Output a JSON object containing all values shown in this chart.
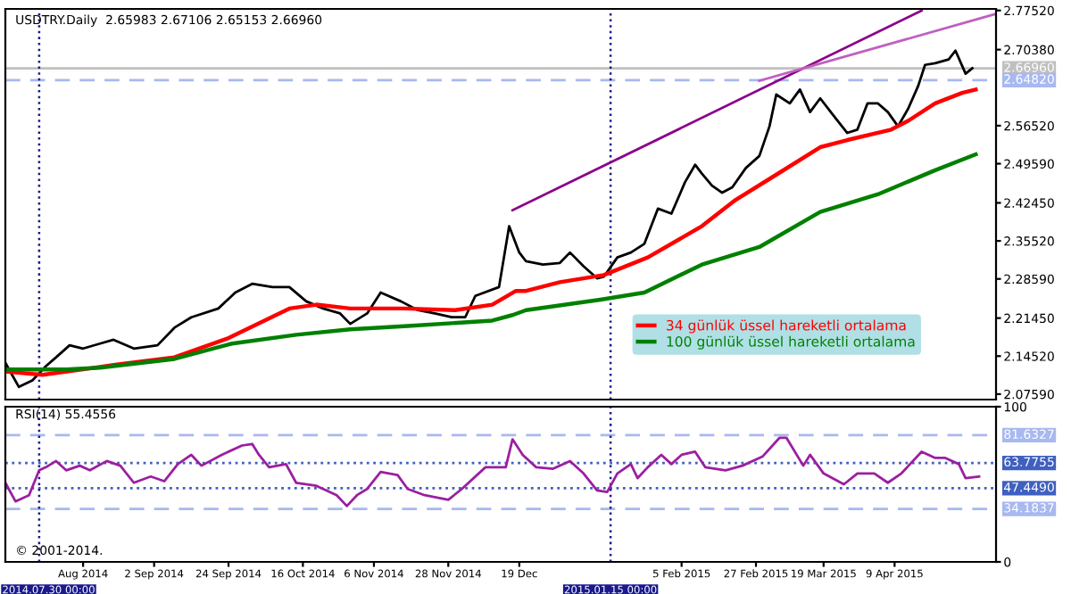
{
  "chart_data": [
    {
      "type": "line",
      "title": "USDTRY.Daily  2.65983 2.67106 2.65153 2.66960",
      "legend": "bottom right",
      "tick_labels": "y",
      "xlim": [
        "2014-07-20",
        "2015-05-09"
      ],
      "ylim": [
        2.066,
        2.778
      ],
      "yticks": [
        {
          "value": 2.7752,
          "label": "2.77520"
        },
        {
          "value": 2.7038,
          "label": "2.70380"
        },
        {
          "value": 2.5652,
          "label": "2.56520"
        },
        {
          "value": 2.4959,
          "label": "2.49590"
        },
        {
          "value": 2.4245,
          "label": "2.42450"
        },
        {
          "value": 2.3552,
          "label": "2.35520"
        },
        {
          "value": 2.2859,
          "label": "2.28590"
        },
        {
          "value": 2.2145,
          "label": "2.21450"
        },
        {
          "value": 2.1452,
          "label": "2.14520"
        },
        {
          "value": 2.0759,
          "label": "2.07590"
        }
      ],
      "ref_lines": [
        {
          "axis": "y",
          "value": 2.6696,
          "label": "2.66960",
          "color": "#c0c0c0",
          "line_style": "solid"
        },
        {
          "axis": "y",
          "value": 2.6482,
          "label": "2.64820",
          "color": "#a8b8f0",
          "line_style": "dashed"
        },
        {
          "axis": "x",
          "value": "2014-07-30",
          "color": "#1a1a8c",
          "line_style": "dotted"
        },
        {
          "axis": "x",
          "value": "2015-01-15",
          "color": "#1a1a8c",
          "line_style": "dotted"
        }
      ],
      "series": [
        {
          "color": "#000000",
          "x": [
            "2014-07-20",
            "2014-07-24",
            "2014-07-28",
            "2014-08-01",
            "2014-08-04",
            "2014-08-08",
            "2014-08-12",
            "2014-08-17",
            "2014-08-21",
            "2014-08-27",
            "2014-09-03",
            "2014-09-08",
            "2014-09-13",
            "2014-09-21",
            "2014-09-26",
            "2014-10-01",
            "2014-10-07",
            "2014-10-12",
            "2014-10-17",
            "2014-10-22",
            "2014-10-27",
            "2014-10-30",
            "2014-11-04",
            "2014-11-08",
            "2014-11-14",
            "2014-11-19",
            "2014-11-24",
            "2014-11-29",
            "2014-12-03",
            "2014-12-06",
            "2014-12-13",
            "2014-12-16",
            "2014-12-19",
            "2014-12-21",
            "2014-12-26",
            "2014-12-31",
            "2015-01-03",
            "2015-01-07",
            "2015-01-11",
            "2015-01-13",
            "2015-01-17",
            "2015-01-21",
            "2015-01-25",
            "2015-01-29",
            "2015-02-02",
            "2015-02-06",
            "2015-02-09",
            "2015-02-11",
            "2015-02-14",
            "2015-02-17",
            "2015-02-20",
            "2015-02-24",
            "2015-02-28",
            "2015-03-03",
            "2015-03-05",
            "2015-03-09",
            "2015-03-12",
            "2015-03-15",
            "2015-03-18",
            "2015-03-22",
            "2015-03-26",
            "2015-03-29",
            "2015-04-01",
            "2015-04-04",
            "2015-04-07",
            "2015-04-10",
            "2015-04-13",
            "2015-04-16",
            "2015-04-18",
            "2015-04-21",
            "2015-04-25",
            "2015-04-27",
            "2015-04-30",
            "2015-05-02"
          ],
          "values": [
            2.133,
            2.089,
            2.101,
            2.127,
            2.143,
            2.165,
            2.159,
            2.168,
            2.175,
            2.159,
            2.165,
            2.197,
            2.216,
            2.232,
            2.261,
            2.277,
            2.271,
            2.271,
            2.245,
            2.232,
            2.223,
            2.204,
            2.223,
            2.261,
            2.245,
            2.229,
            2.223,
            2.216,
            2.216,
            2.255,
            2.271,
            2.382,
            2.334,
            2.318,
            2.312,
            2.315,
            2.334,
            2.309,
            2.287,
            2.29,
            2.325,
            2.334,
            2.35,
            2.414,
            2.405,
            2.462,
            2.494,
            2.478,
            2.456,
            2.443,
            2.453,
            2.488,
            2.51,
            2.564,
            2.622,
            2.606,
            2.631,
            2.59,
            2.615,
            2.583,
            2.552,
            2.558,
            2.606,
            2.606,
            2.59,
            2.564,
            2.596,
            2.638,
            2.676,
            2.679,
            2.686,
            2.702,
            2.66,
            2.67
          ]
        },
        {
          "name": "34 günlük üssel hareketli ortalama",
          "color": "#ff0000",
          "x": [
            "2014-07-20",
            "2014-07-31",
            "2014-08-12",
            "2014-08-22",
            "2014-09-08",
            "2014-09-24",
            "2014-10-12",
            "2014-10-20",
            "2014-10-30",
            "2014-11-15",
            "2014-11-30",
            "2014-12-11",
            "2014-12-18",
            "2014-12-21",
            "2014-12-31",
            "2015-01-13",
            "2015-01-26",
            "2015-02-11",
            "2015-02-21",
            "2015-03-04",
            "2015-03-18",
            "2015-03-26",
            "2015-04-08",
            "2015-04-13",
            "2015-04-21",
            "2015-04-29",
            "2015-05-03"
          ],
          "values": [
            2.117,
            2.111,
            2.121,
            2.13,
            2.143,
            2.178,
            2.232,
            2.239,
            2.232,
            2.232,
            2.229,
            2.239,
            2.264,
            2.264,
            2.28,
            2.293,
            2.325,
            2.382,
            2.43,
            2.472,
            2.526,
            2.539,
            2.558,
            2.574,
            2.606,
            2.625,
            2.631
          ]
        },
        {
          "name": "100 günlük üssel hareketli ortalama",
          "color": "#008000",
          "x": [
            "2014-07-20",
            "2014-08-07",
            "2014-08-17",
            "2014-09-08",
            "2014-09-25",
            "2014-10-14",
            "2014-10-30",
            "2014-11-16",
            "2014-12-11",
            "2014-12-17",
            "2014-12-21",
            "2015-01-12",
            "2015-01-25",
            "2015-02-11",
            "2015-02-28",
            "2015-03-18",
            "2015-04-04",
            "2015-04-21",
            "2015-05-03"
          ],
          "values": [
            2.121,
            2.121,
            2.124,
            2.14,
            2.168,
            2.184,
            2.194,
            2.2,
            2.21,
            2.22,
            2.229,
            2.248,
            2.261,
            2.312,
            2.344,
            2.408,
            2.44,
            2.484,
            2.513
          ]
        },
        {
          "color": "#8b008b",
          "x": [
            "2014-12-17",
            "2015-04-17"
          ],
          "values": [
            2.411,
            2.775
          ]
        },
        {
          "color": "#c060c0",
          "x": [
            "2015-02-28",
            "2015-05-09"
          ],
          "values": [
            2.647,
            2.769
          ]
        }
      ]
    },
    {
      "type": "line",
      "title": "RSI(14) 55.4556",
      "annotations": [
        "© 2001-2014."
      ],
      "xlim": [
        "2014-07-20",
        "2015-05-09"
      ],
      "ylim": [
        0,
        100
      ],
      "yticks": [
        0,
        100
      ],
      "xticks": [
        {
          "value": "2014-08-12",
          "label": "Aug 2014"
        },
        {
          "value": "2014-09-02",
          "label": "2 Sep 2014"
        },
        {
          "value": "2014-09-24",
          "label": "24 Sep 2014"
        },
        {
          "value": "2014-10-16",
          "label": "16 Oct 2014"
        },
        {
          "value": "2014-11-06",
          "label": "6 Nov 2014"
        },
        {
          "value": "2014-11-28",
          "label": "28 Nov 2014"
        },
        {
          "value": "2014-12-19",
          "label": "19 Dec"
        },
        {
          "value": "2015-02-05",
          "label": "5 Feb 2015"
        },
        {
          "value": "2015-02-27",
          "label": "27 Feb 2015"
        },
        {
          "value": "2015-03-19",
          "label": "19 Mar 2015"
        },
        {
          "value": "2015-04-09",
          "label": "9 Apr 2015"
        }
      ],
      "ref_lines": [
        {
          "axis": "y",
          "value": 81.6327,
          "label": "81.6327",
          "color": "#a8b8f0",
          "line_style": "dashed"
        },
        {
          "axis": "y",
          "value": 63.7755,
          "label": "63.7755",
          "color": "#4060c0",
          "line_style": "dotted"
        },
        {
          "axis": "y",
          "value": 47.449,
          "label": "47.4490",
          "color": "#4060c0",
          "line_style": "dotted"
        },
        {
          "axis": "y",
          "value": 34.1837,
          "label": "34.1837",
          "color": "#a8b8f0",
          "line_style": "dashed"
        },
        {
          "axis": "x",
          "value": "2014-07-30",
          "label": "2014.07.30 00:00",
          "color": "#1a1a8c",
          "line_style": "dotted"
        },
        {
          "axis": "x",
          "value": "2015-01-15",
          "label": "2015.01.15 00:00",
          "color": "#1a1a8c",
          "line_style": "dotted"
        }
      ],
      "series": [
        {
          "color": "#9b1fa0",
          "x": [
            "2014-07-20",
            "2014-07-23",
            "2014-07-27",
            "2014-07-30",
            "2014-08-01",
            "2014-08-04",
            "2014-08-07",
            "2014-08-11",
            "2014-08-14",
            "2014-08-19",
            "2014-08-23",
            "2014-08-27",
            "2014-09-01",
            "2014-09-05",
            "2014-09-09",
            "2014-09-13",
            "2014-09-16",
            "2014-09-22",
            "2014-09-28",
            "2014-10-01",
            "2014-10-03",
            "2014-10-06",
            "2014-10-11",
            "2014-10-14",
            "2014-10-20",
            "2014-10-26",
            "2014-10-29",
            "2014-11-01",
            "2014-11-04",
            "2014-11-08",
            "2014-11-13",
            "2014-11-16",
            "2014-11-21",
            "2014-11-28",
            "2014-12-02",
            "2014-12-09",
            "2014-12-15",
            "2014-12-17",
            "2014-12-20",
            "2014-12-24",
            "2014-12-29",
            "2015-01-03",
            "2015-01-07",
            "2015-01-11",
            "2015-01-14",
            "2015-01-17",
            "2015-01-21",
            "2015-01-23",
            "2015-01-26",
            "2015-01-30",
            "2015-02-02",
            "2015-02-05",
            "2015-02-09",
            "2015-02-12",
            "2015-02-18",
            "2015-02-23",
            "2015-03-01",
            "2015-03-06",
            "2015-03-08",
            "2015-03-13",
            "2015-03-15",
            "2015-03-19",
            "2015-03-25",
            "2015-03-29",
            "2015-04-03",
            "2015-04-07",
            "2015-04-11",
            "2015-04-17",
            "2015-04-21",
            "2015-04-24",
            "2015-04-28",
            "2015-04-30",
            "2015-05-04"
          ],
          "values": [
            51,
            39,
            43,
            59,
            61,
            65,
            59,
            62,
            59,
            65,
            62,
            51,
            55,
            52,
            63,
            69,
            62,
            69,
            75,
            76,
            69,
            61,
            63,
            51,
            49,
            43,
            36,
            43,
            47,
            58,
            56,
            47,
            43,
            40,
            47,
            61,
            61,
            79,
            69,
            61,
            60,
            65,
            57,
            46,
            45,
            57,
            63,
            54,
            61,
            69,
            63,
            69,
            71,
            61,
            59,
            62,
            68,
            80,
            80,
            62,
            69,
            57,
            50,
            57,
            57,
            51,
            57,
            71,
            67,
            67,
            63,
            54,
            55
          ]
        }
      ]
    }
  ]
}
